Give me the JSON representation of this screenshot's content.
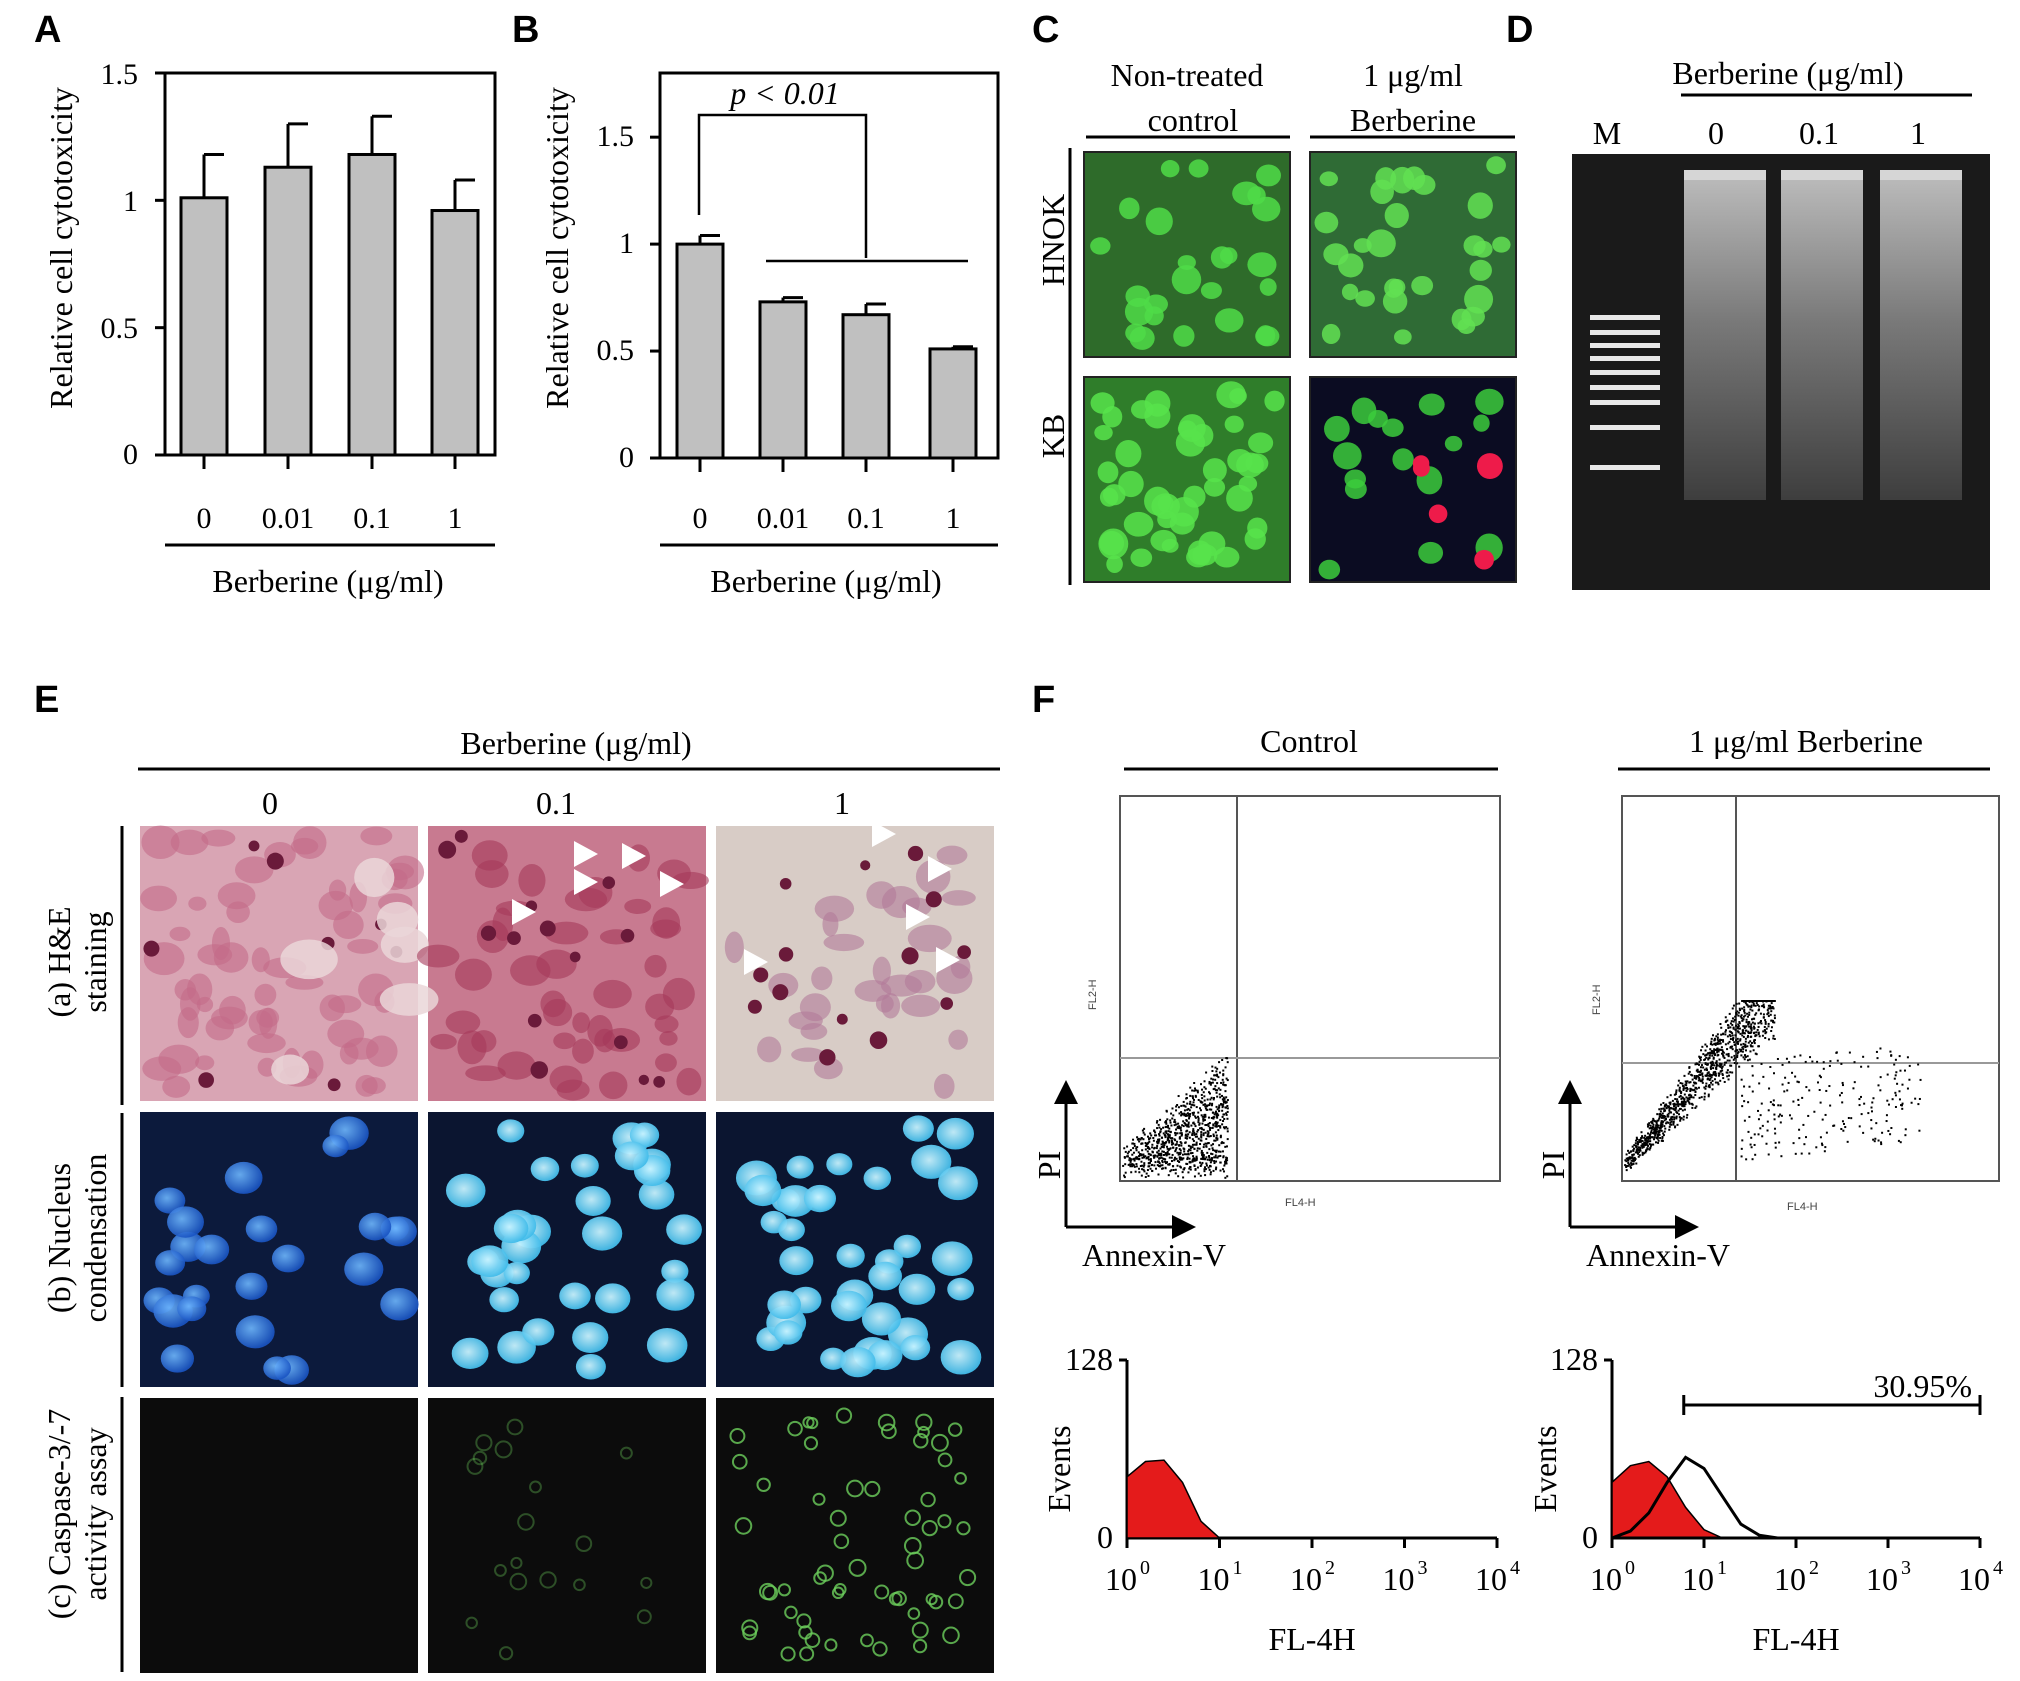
{
  "panels": {
    "A": "A",
    "B": "B",
    "C": "C",
    "D": "D",
    "E": "E",
    "F": "F"
  },
  "chart_data": [
    {
      "panel": "A",
      "type": "bar",
      "categories": [
        "0",
        "0.01",
        "0.1",
        "1"
      ],
      "values": [
        1.01,
        1.13,
        1.18,
        0.96
      ],
      "errors": [
        0.17,
        0.17,
        0.15,
        0.12
      ],
      "ylabel": "Relative cell cytotoxicity",
      "xlabel": "Berberine (μg/ml)",
      "yticks": [
        "0",
        "0.5",
        "1",
        "1.5"
      ],
      "ylim": [
        0,
        1.5
      ],
      "bar_color": "#c0c0c0"
    },
    {
      "panel": "B",
      "type": "bar",
      "categories": [
        "0",
        "0.01",
        "0.1",
        "1"
      ],
      "values": [
        1.0,
        0.73,
        0.67,
        0.51
      ],
      "errors": [
        0.04,
        0.02,
        0.05,
        0.01
      ],
      "ylabel": "Relative cell cytotoxicity",
      "xlabel": "Berberine (μg/ml)",
      "yticks": [
        "0",
        "0.5",
        "1",
        "1.5"
      ],
      "ylim": [
        0,
        1.8
      ],
      "annotation": "p < 0.01",
      "bar_color": "#c0c0c0"
    },
    {
      "panel": "F-control-histogram",
      "type": "area",
      "ylabel": "Events",
      "xlabel": "FL-4H",
      "yticks": [
        "0",
        "128"
      ],
      "xticks": [
        "10",
        "10",
        "10",
        "10",
        "10"
      ],
      "xtick_exponents": [
        "0",
        "1",
        "2",
        "3",
        "4"
      ],
      "x_log_range": [
        0,
        4
      ],
      "x": [
        0.0,
        0.2,
        0.4,
        0.6,
        0.8,
        1.0
      ],
      "series": [
        {
          "values": [
            44,
            55,
            56,
            40,
            12,
            0
          ],
          "color": "#e41b1b"
        }
      ]
    },
    {
      "panel": "F-berberine-histogram",
      "type": "area",
      "ylabel": "Events",
      "xlabel": "FL-4H",
      "yticks": [
        "0",
        "128"
      ],
      "xticks": [
        "10",
        "10",
        "10",
        "10",
        "10"
      ],
      "xtick_exponents": [
        "0",
        "1",
        "2",
        "3",
        "4"
      ],
      "x_log_range": [
        0,
        4
      ],
      "annotation": "30.95%",
      "gate_log_range": [
        0.78,
        4.0
      ],
      "x": [
        0.0,
        0.2,
        0.4,
        0.6,
        0.8,
        1.0,
        1.2,
        1.4,
        1.6,
        1.8
      ],
      "series": [
        {
          "values": [
            40,
            52,
            55,
            44,
            22,
            6,
            0,
            0,
            0,
            0
          ],
          "color": "#e41b1b"
        },
        {
          "values": [
            0,
            5,
            18,
            40,
            58,
            50,
            30,
            10,
            2,
            0
          ],
          "color": "#000000"
        }
      ]
    }
  ],
  "panelC": {
    "col_labels": [
      [
        "Non-treated",
        "control"
      ],
      [
        "1 μg/ml",
        "Berberine"
      ]
    ],
    "row_labels": [
      "HNOK",
      "KB"
    ]
  },
  "panelD": {
    "group_label": "Berberine (μg/ml)",
    "lane_labels": [
      "M",
      "0",
      "0.1",
      "1"
    ]
  },
  "panelE": {
    "group_label": "Berberine (μg/ml)",
    "col_labels": [
      "0",
      "0.1",
      "1"
    ],
    "row_labels": [
      [
        "(a) H&E",
        "staining"
      ],
      [
        "(b) Nucleus",
        "condensation"
      ],
      [
        "(c) Caspase-3/-7",
        "activity assay"
      ]
    ]
  },
  "panelF": {
    "titles": [
      "Control",
      "1 μg/ml Berberine"
    ],
    "dot_axis_x": "Annexin-V",
    "dot_axis_y": "PI",
    "dot_inner_x": "FL4-H",
    "dot_inner_y": "FL2-H"
  },
  "colors": {
    "bar": "#c0c0c0",
    "fitc_green": "#3ccd3c",
    "dapi_blue": "#1a5fd0",
    "he_pink": "#c0647e",
    "histogram_red": "#e41b1b"
  }
}
